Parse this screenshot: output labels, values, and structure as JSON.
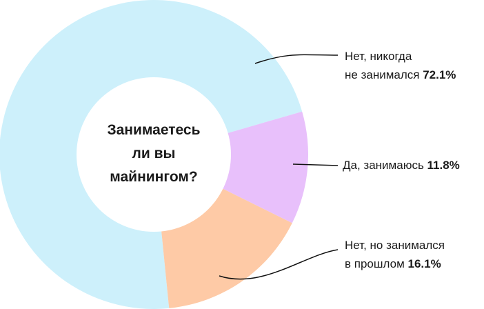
{
  "chart_data": {
    "type": "donut",
    "title": "Занимаетесь\nли вы\nмайнингом?",
    "categories": [
      "Нет, никогда\nне занимался",
      "Да, занимаюсь",
      "Нет, но занимался\nв прошлом"
    ],
    "values": [
      72.1,
      11.8,
      16.1
    ],
    "value_labels": [
      "72.1%",
      "11.8%",
      "16.1%"
    ],
    "colors": [
      "#cdf0fb",
      "#e8c0fb",
      "#fecaa6"
    ]
  }
}
